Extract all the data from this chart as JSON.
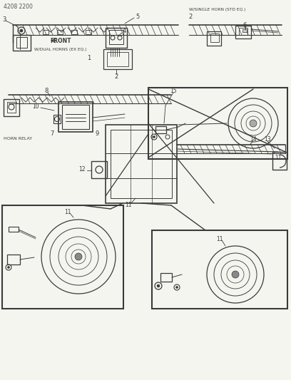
{
  "bg_color": "#f5f5f0",
  "line_color": "#3a3a3a",
  "title": "4208 2200",
  "labels": {
    "front": "FRONT",
    "dual": "W/DUAL HORNS (EX EQ.)",
    "single": "W/SINGLE HORN (STD EQ.)",
    "relay": "HORN RELAY"
  },
  "figsize": [
    4.08,
    5.33
  ],
  "dpi": 100
}
